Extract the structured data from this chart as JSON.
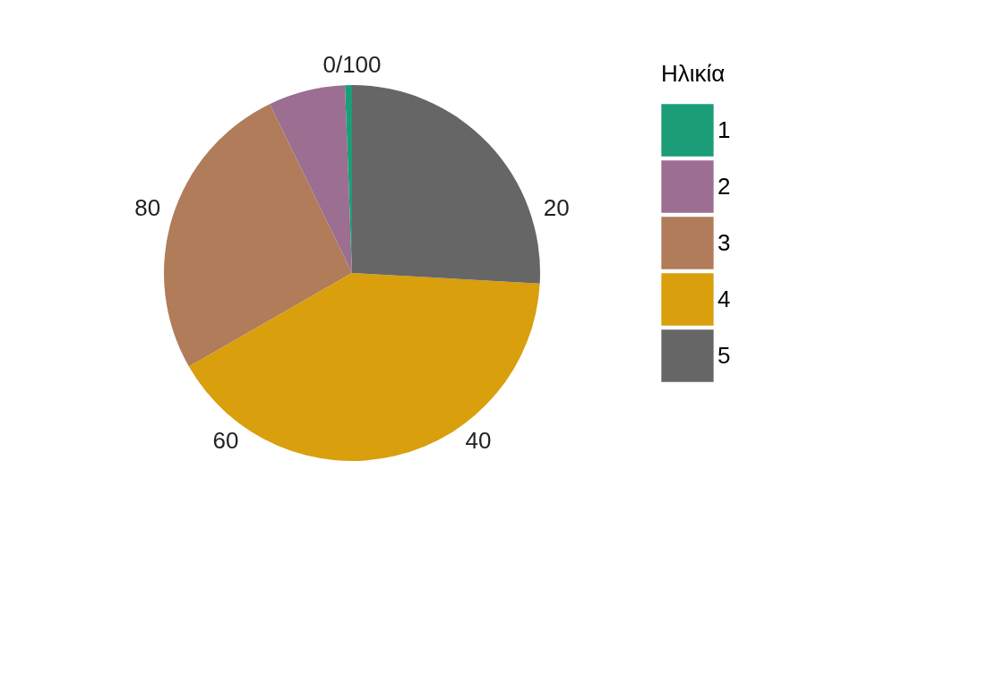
{
  "chart_data": {
    "type": "pie",
    "legend_title": "Ηλικία",
    "legend": "right",
    "categories": [
      "1",
      "2",
      "3",
      "4",
      "5"
    ],
    "values": [
      0.6,
      6.6,
      26.1,
      40.8,
      25.9
    ],
    "colors": [
      "#1b9e77",
      "#9c6e91",
      "#b07c5a",
      "#d99f0c",
      "#666666"
    ],
    "annotations": [
      "0/100",
      "20",
      "40",
      "60",
      "80"
    ]
  }
}
